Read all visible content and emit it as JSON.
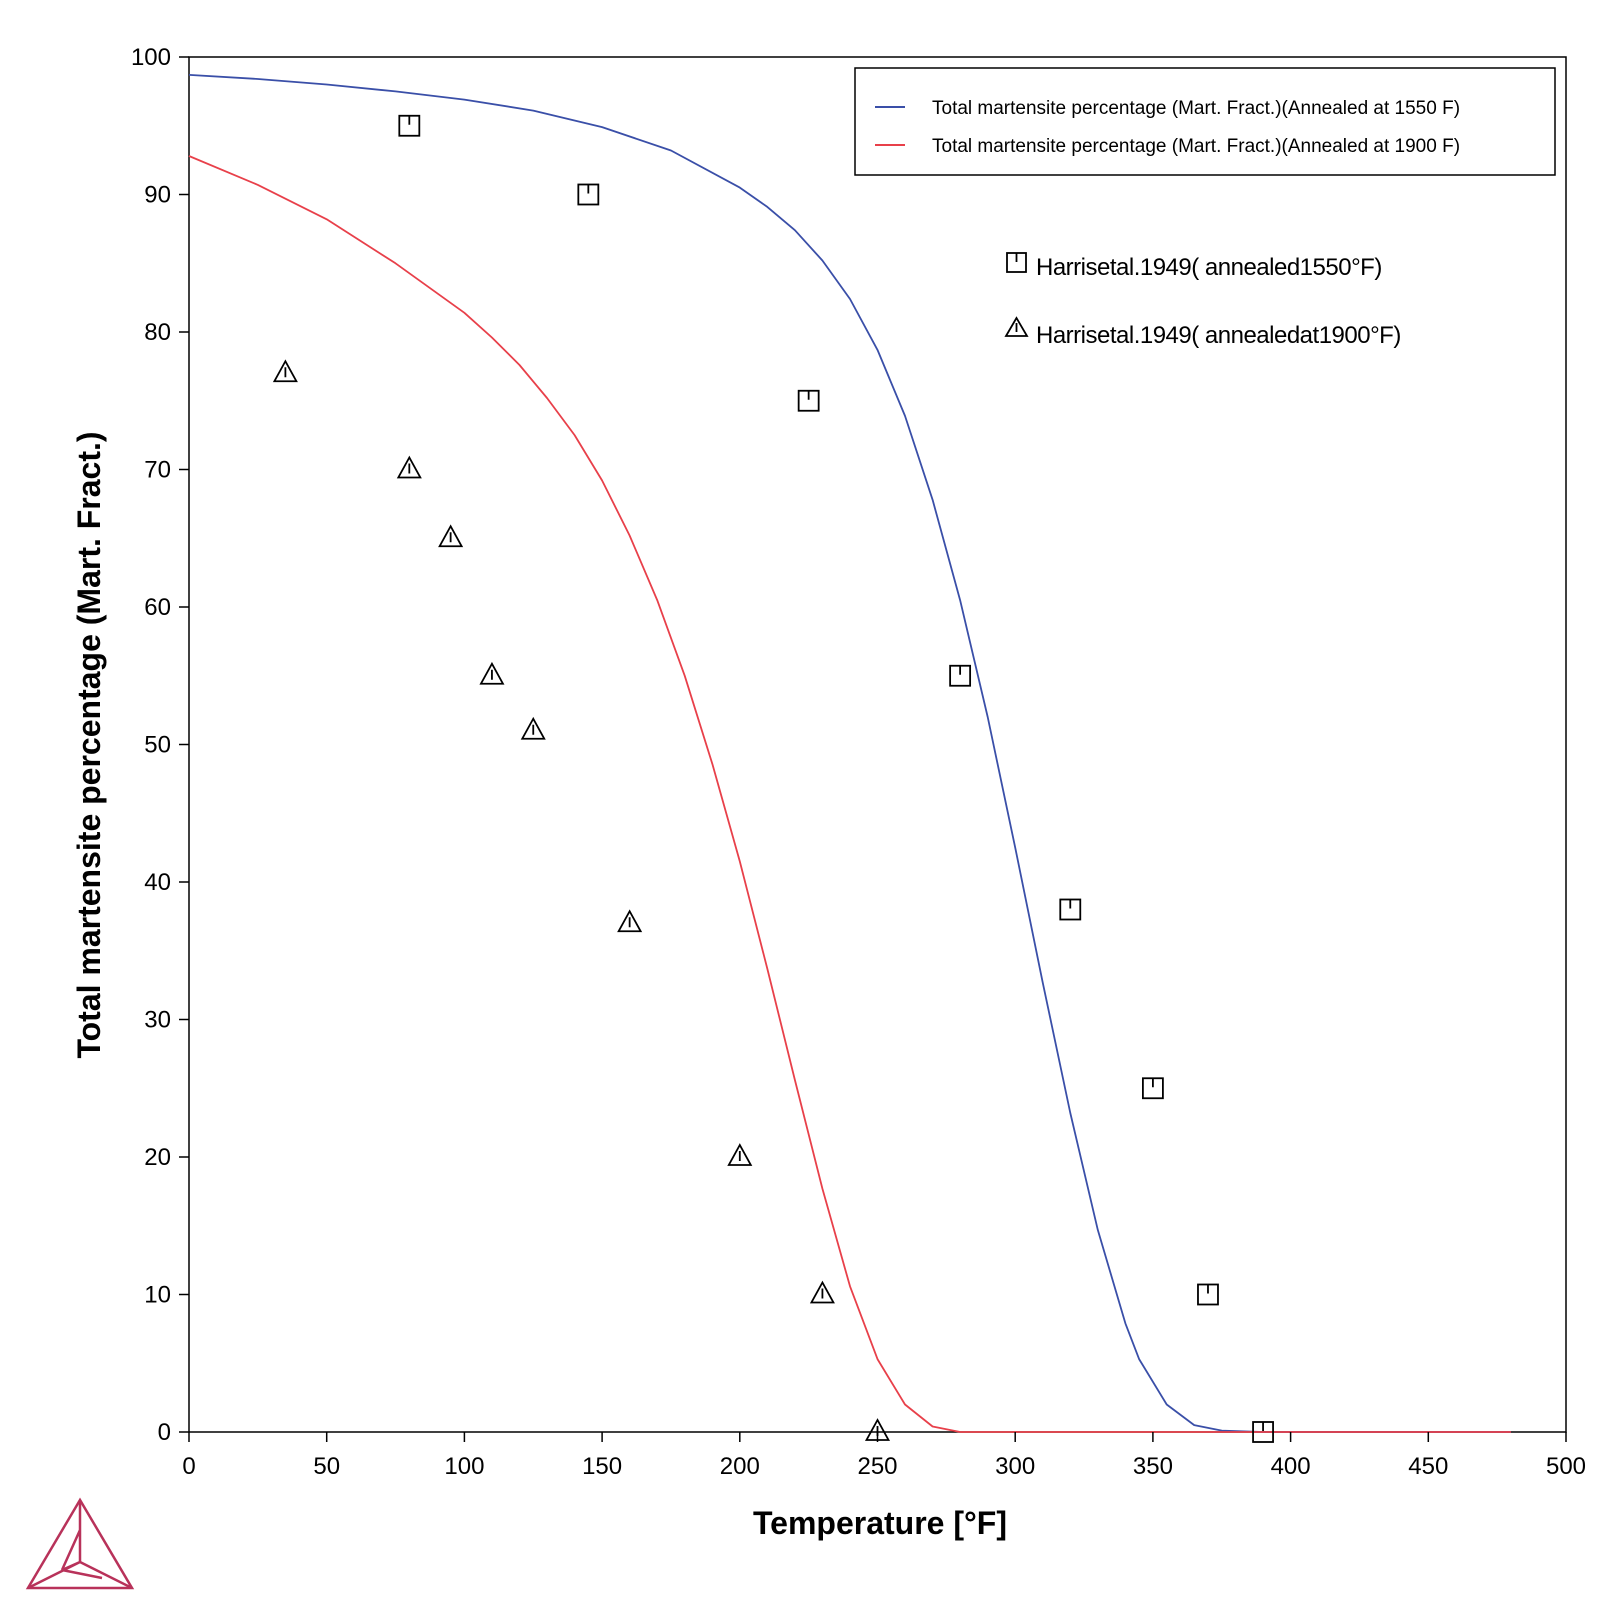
{
  "chart_data": {
    "type": "line",
    "xlabel": "Temperature [°F]",
    "ylabel": "Total martensite percentage (Mart. Fract.)",
    "xlim": [
      0,
      500
    ],
    "ylim": [
      0,
      100
    ],
    "xticks": [
      0,
      50,
      100,
      150,
      200,
      250,
      300,
      350,
      400,
      450,
      500
    ],
    "yticks": [
      0,
      10,
      20,
      30,
      40,
      50,
      60,
      70,
      80,
      90,
      100
    ],
    "grid": false,
    "legend_position": "top-right",
    "series": [
      {
        "name": "Total martensite percentage (Mart. Fract.)(Annealed at 1550 F)",
        "kind": "line",
        "color": "#3a4fa8",
        "x": [
          0,
          25,
          50,
          75,
          100,
          125,
          150,
          175,
          200,
          210,
          220,
          230,
          240,
          250,
          260,
          270,
          280,
          290,
          300,
          310,
          320,
          330,
          340,
          345,
          355,
          365,
          375,
          390,
          420,
          450,
          480
        ],
        "y": [
          98.7,
          98.4,
          98.0,
          97.5,
          96.9,
          96.1,
          94.9,
          93.2,
          90.5,
          89.1,
          87.4,
          85.2,
          82.4,
          78.7,
          73.9,
          67.8,
          60.5,
          52.0,
          42.5,
          32.7,
          23.2,
          14.7,
          7.9,
          5.3,
          2.0,
          0.5,
          0.1,
          0.0,
          0.0,
          0.0,
          0.0
        ]
      },
      {
        "name": "Total martensite percentage (Mart. Fract.)(Annealed at 1900 F)",
        "kind": "line",
        "color": "#e8404a",
        "x": [
          0,
          25,
          50,
          75,
          100,
          110,
          120,
          130,
          140,
          150,
          160,
          170,
          180,
          190,
          200,
          210,
          220,
          230,
          240,
          250,
          260,
          270,
          280,
          300,
          350,
          400,
          450,
          480
        ],
        "y": [
          92.8,
          90.7,
          88.2,
          85.0,
          81.4,
          79.6,
          77.6,
          75.2,
          72.5,
          69.2,
          65.2,
          60.5,
          55.0,
          48.6,
          41.5,
          33.7,
          25.6,
          17.7,
          10.6,
          5.3,
          2.0,
          0.4,
          0.0,
          0.0,
          0.0,
          0.0,
          0.0,
          0.0
        ]
      },
      {
        "name": "Harris et al. 1949 (annealed 1550 °F)",
        "kind": "scatter",
        "marker": "square",
        "x": [
          80,
          145,
          225,
          280,
          320,
          350,
          370,
          390
        ],
        "y": [
          95,
          90,
          75,
          55,
          38,
          25,
          10,
          0
        ]
      },
      {
        "name": "Harris et al. 1949 (annealed at 1900 °F)",
        "kind": "scatter",
        "marker": "triangle",
        "x": [
          35,
          80,
          95,
          110,
          125,
          160,
          200,
          230,
          250
        ],
        "y": [
          77,
          70,
          65,
          55,
          51,
          37,
          20,
          10,
          0
        ]
      }
    ]
  },
  "legend": {
    "line_1550_label": "Total martensite percentage (Mart. Fract.)(Annealed at 1550 F)",
    "line_1900_label": "Total martensite percentage (Mart. Fract.)(Annealed at 1900 F)"
  },
  "experimental_labels": {
    "square_label": "Harrisetal.1949( annealed1550°F)",
    "triangle_label": "Harrisetal.1949( annealedat1900°F)"
  },
  "logo": {
    "color": "#b8325a"
  }
}
